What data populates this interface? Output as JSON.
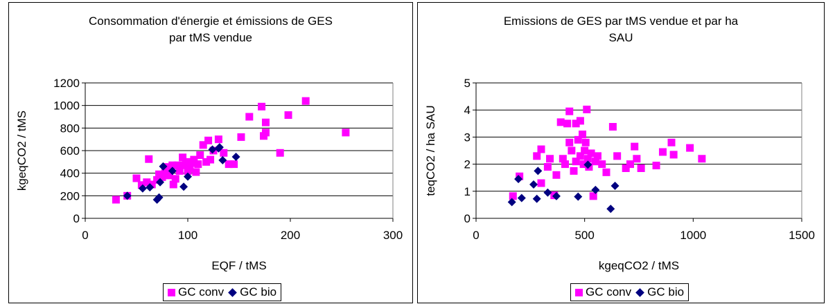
{
  "chart_data": [
    {
      "type": "scatter",
      "title_line1": "Consommation d'énergie et émissions de GES",
      "title_line2": "par tMS vendue",
      "xlabel": "EQF / tMS",
      "ylabel": "kgeqCO2 / tMS",
      "xlim": [
        0,
        300
      ],
      "ylim": [
        0,
        1200
      ],
      "xticks": [
        0,
        100,
        200,
        300
      ],
      "yticks": [
        0,
        200,
        400,
        600,
        800,
        1000,
        1200
      ],
      "grid": "horizontal",
      "legend_position": "bottom",
      "series": [
        {
          "name": "GC conv",
          "color": "#ff00ff",
          "marker": "square",
          "points": [
            [
              30,
              165
            ],
            [
              41,
              200
            ],
            [
              50,
              355
            ],
            [
              55,
              295
            ],
            [
              60,
              320
            ],
            [
              62,
              525
            ],
            [
              65,
              300
            ],
            [
              70,
              340
            ],
            [
              72,
              390
            ],
            [
              75,
              365
            ],
            [
              78,
              420
            ],
            [
              80,
              455
            ],
            [
              82,
              380
            ],
            [
              85,
              470
            ],
            [
              86,
              300
            ],
            [
              88,
              350
            ],
            [
              90,
              470
            ],
            [
              92,
              420
            ],
            [
              95,
              540
            ],
            [
              98,
              475
            ],
            [
              100,
              500
            ],
            [
              102,
              440
            ],
            [
              104,
              490
            ],
            [
              106,
              520
            ],
            [
              108,
              410
            ],
            [
              110,
              480
            ],
            [
              112,
              560
            ],
            [
              115,
              650
            ],
            [
              118,
              500
            ],
            [
              120,
              690
            ],
            [
              125,
              600
            ],
            [
              130,
              700
            ],
            [
              135,
              580
            ],
            [
              140,
              480
            ],
            [
              145,
              480
            ],
            [
              152,
              720
            ],
            [
              160,
              900
            ],
            [
              172,
              990
            ],
            [
              174,
              730
            ],
            [
              176,
              760
            ],
            [
              176,
              850
            ],
            [
              190,
              580
            ],
            [
              198,
              915
            ],
            [
              215,
              1040
            ],
            [
              254,
              760
            ],
            [
              122,
              520
            ],
            [
              100,
              420
            ],
            [
              95,
              470
            ]
          ]
        },
        {
          "name": "GC bio",
          "color": "#000080",
          "marker": "diamond",
          "points": [
            [
              41,
              200
            ],
            [
              56,
              265
            ],
            [
              63,
              275
            ],
            [
              70,
              165
            ],
            [
              72,
              185
            ],
            [
              73,
              320
            ],
            [
              76,
              460
            ],
            [
              85,
              420
            ],
            [
              96,
              280
            ],
            [
              100,
              370
            ],
            [
              124,
              610
            ],
            [
              130,
              620
            ],
            [
              131,
              630
            ],
            [
              134,
              515
            ],
            [
              147,
              545
            ]
          ]
        }
      ]
    },
    {
      "type": "scatter",
      "title_line1": "Emissions de GES par tMS vendue et par ha",
      "title_line2": "SAU",
      "xlabel": "kgeqCO2 / tMS",
      "ylabel": "teqCO2 / ha SAU",
      "xlim": [
        0,
        1500
      ],
      "ylim": [
        0,
        5
      ],
      "xticks": [
        0,
        500,
        1000,
        1500
      ],
      "yticks": [
        0,
        1,
        2,
        3,
        4,
        5
      ],
      "grid": "horizontal",
      "legend_position": "bottom",
      "series": [
        {
          "name": "GC conv",
          "color": "#ff00ff",
          "marker": "square",
          "points": [
            [
              170,
              0.82
            ],
            [
              200,
              1.55
            ],
            [
              280,
              2.3
            ],
            [
              300,
              2.55
            ],
            [
              300,
              1.3
            ],
            [
              330,
              1.9
            ],
            [
              340,
              2.2
            ],
            [
              360,
              0.85
            ],
            [
              370,
              1.6
            ],
            [
              390,
              3.55
            ],
            [
              400,
              2.2
            ],
            [
              410,
              2.0
            ],
            [
              420,
              3.5
            ],
            [
              430,
              3.95
            ],
            [
              430,
              2.8
            ],
            [
              440,
              2.5
            ],
            [
              450,
              1.75
            ],
            [
              460,
              3.5
            ],
            [
              460,
              2.1
            ],
            [
              470,
              2.9
            ],
            [
              480,
              3.6
            ],
            [
              480,
              2.3
            ],
            [
              490,
              3.1
            ],
            [
              495,
              2.0
            ],
            [
              500,
              2.5
            ],
            [
              505,
              2.8
            ],
            [
              510,
              4.02
            ],
            [
              515,
              2.2
            ],
            [
              520,
              1.9
            ],
            [
              530,
              2.4
            ],
            [
              540,
              0.82
            ],
            [
              550,
              2.1
            ],
            [
              560,
              2.3
            ],
            [
              580,
              2.0
            ],
            [
              600,
              1.7
            ],
            [
              630,
              3.38
            ],
            [
              650,
              2.3
            ],
            [
              690,
              1.85
            ],
            [
              710,
              2.0
            ],
            [
              730,
              2.65
            ],
            [
              740,
              2.2
            ],
            [
              760,
              1.85
            ],
            [
              830,
              1.95
            ],
            [
              860,
              2.45
            ],
            [
              900,
              2.8
            ],
            [
              910,
              2.35
            ],
            [
              985,
              2.6
            ],
            [
              1040,
              2.2
            ]
          ]
        },
        {
          "name": "GC bio",
          "color": "#000080",
          "marker": "diamond",
          "points": [
            [
              165,
              0.6
            ],
            [
              195,
              1.45
            ],
            [
              210,
              0.75
            ],
            [
              265,
              1.25
            ],
            [
              280,
              0.72
            ],
            [
              285,
              1.75
            ],
            [
              330,
              0.95
            ],
            [
              370,
              0.82
            ],
            [
              470,
              0.8
            ],
            [
              515,
              1.98
            ],
            [
              550,
              1.05
            ],
            [
              620,
              0.35
            ],
            [
              640,
              1.2
            ]
          ]
        }
      ]
    }
  ]
}
